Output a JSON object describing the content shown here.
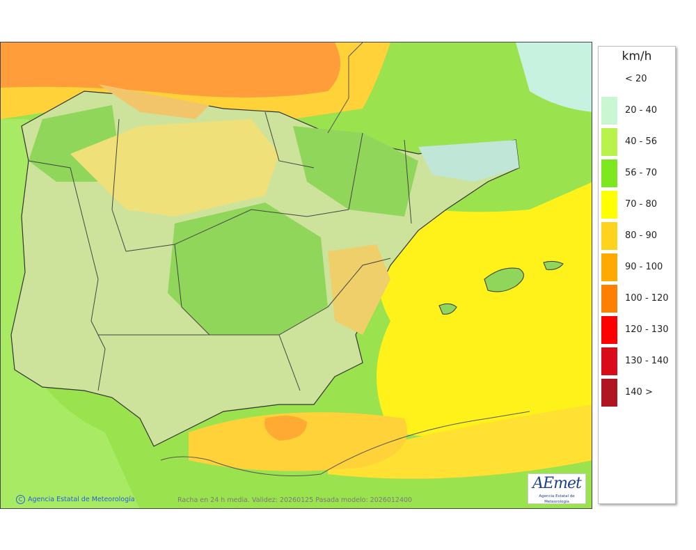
{
  "map": {
    "caption": "Racha en 24 h media. Validez: 20260125 Pasada modelo: 2026012400",
    "credit": "Agencia Estatal de Meteorología",
    "credit_symbol": "C",
    "logo": {
      "text": "AEmet",
      "subtitle": "Agencia Estatal de Meteorología"
    }
  },
  "legend": {
    "unit": "km/h",
    "items": [
      {
        "label": "< 20",
        "color": "#ffffff"
      },
      {
        "label": "20 - 40",
        "color": "#c8f7d2"
      },
      {
        "label": "40 - 56",
        "color": "#b8f24a"
      },
      {
        "label": "56 - 70",
        "color": "#7de81e"
      },
      {
        "label": "70 - 80",
        "color": "#ffff00"
      },
      {
        "label": "80 - 90",
        "color": "#ffd21e"
      },
      {
        "label": "90 - 100",
        "color": "#ffaa00"
      },
      {
        "label": "100 - 120",
        "color": "#ff8000"
      },
      {
        "label": "120 - 130",
        "color": "#ff0000"
      },
      {
        "label": "130 - 140",
        "color": "#d90b1a"
      },
      {
        "label": "140 >",
        "color": "#b01621"
      }
    ]
  }
}
